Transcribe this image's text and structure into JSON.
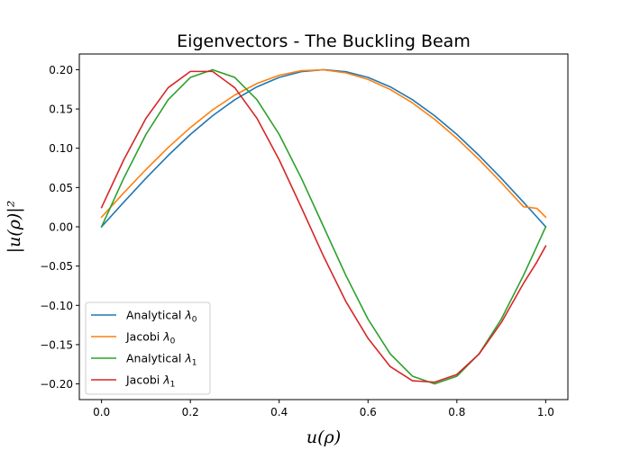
{
  "chart_data": {
    "type": "line",
    "title": "Eigenvectors - The Buckling Beam",
    "xlabel": "u(ρ)",
    "ylabel": "|u(ρ)|²",
    "xlim": [
      -0.05,
      1.05
    ],
    "ylim": [
      -0.22,
      0.22
    ],
    "xticks": [
      0.0,
      0.2,
      0.4,
      0.6,
      0.8,
      1.0
    ],
    "xtick_labels": [
      "0.0",
      "0.2",
      "0.4",
      "0.6",
      "0.8",
      "1.0"
    ],
    "yticks": [
      -0.2,
      -0.15,
      -0.1,
      -0.05,
      0.0,
      0.05,
      0.1,
      0.15,
      0.2
    ],
    "ytick_labels": [
      "−0.20",
      "−0.15",
      "−0.10",
      "−0.05",
      "0.00",
      "0.05",
      "0.10",
      "0.15",
      "0.20"
    ],
    "grid": false,
    "legend_position": "lower-left",
    "series": [
      {
        "name": "Analytical λ0",
        "label_main": "Analytical ",
        "label_sym": "λ",
        "label_sub": "0",
        "color": "#1f77b4",
        "x": [
          0.0,
          0.05,
          0.1,
          0.15,
          0.2,
          0.25,
          0.3,
          0.35,
          0.4,
          0.45,
          0.5,
          0.55,
          0.6,
          0.65,
          0.7,
          0.75,
          0.8,
          0.85,
          0.9,
          0.95,
          0.98,
          1.0
        ],
        "y": [
          0.0,
          0.0313,
          0.0618,
          0.0908,
          0.1176,
          0.1414,
          0.1618,
          0.1782,
          0.1902,
          0.1975,
          0.2,
          0.1975,
          0.1902,
          0.1782,
          0.1618,
          0.1414,
          0.1176,
          0.0908,
          0.0618,
          0.0313,
          0.0126,
          0.0
        ]
      },
      {
        "name": "Jacobi λ0",
        "label_main": "Jacobi ",
        "label_sym": "λ",
        "label_sub": "0",
        "color": "#ff7f0e",
        "x": [
          0.0,
          0.05,
          0.1,
          0.15,
          0.2,
          0.25,
          0.3,
          0.35,
          0.4,
          0.45,
          0.5,
          0.55,
          0.6,
          0.65,
          0.7,
          0.75,
          0.8,
          0.85,
          0.9,
          0.95,
          0.98,
          1.0
        ],
        "y": [
          0.0123,
          0.0432,
          0.0729,
          0.1009,
          0.1264,
          0.1488,
          0.1677,
          0.1825,
          0.1929,
          0.1987,
          0.1998,
          0.1961,
          0.1876,
          0.1748,
          0.1577,
          0.1368,
          0.1126,
          0.0856,
          0.0563,
          0.0256,
          0.0235,
          0.0123
        ]
      },
      {
        "name": "Analytical λ1",
        "label_main": "Analytical ",
        "label_sym": "λ",
        "label_sub": "1",
        "color": "#2ca02c",
        "x": [
          0.0,
          0.05,
          0.1,
          0.15,
          0.2,
          0.25,
          0.3,
          0.35,
          0.4,
          0.45,
          0.5,
          0.55,
          0.6,
          0.65,
          0.7,
          0.75,
          0.8,
          0.85,
          0.9,
          0.95,
          0.98,
          1.0
        ],
        "y": [
          0.0,
          0.0618,
          0.1176,
          0.1618,
          0.1902,
          0.2,
          0.1902,
          0.1618,
          0.1176,
          0.0618,
          0.0,
          -0.0618,
          -0.1176,
          -0.1618,
          -0.1902,
          -0.2,
          -0.1902,
          -0.1618,
          -0.1176,
          -0.0618,
          -0.025,
          0.0
        ]
      },
      {
        "name": "Jacobi λ1",
        "label_main": "Jacobi ",
        "label_sym": "λ",
        "label_sub": "1",
        "color": "#d62728",
        "x": [
          0.0,
          0.05,
          0.1,
          0.15,
          0.2,
          0.25,
          0.3,
          0.35,
          0.4,
          0.45,
          0.5,
          0.55,
          0.6,
          0.65,
          0.7,
          0.75,
          0.8,
          0.85,
          0.9,
          0.95,
          0.98,
          1.0
        ],
        "y": [
          0.0245,
          0.0852,
          0.1381,
          0.1771,
          0.1978,
          0.1978,
          0.1771,
          0.1381,
          0.0852,
          0.0245,
          -0.0377,
          -0.095,
          -0.142,
          -0.178,
          -0.196,
          -0.1978,
          -0.188,
          -0.162,
          -0.122,
          -0.072,
          -0.045,
          -0.0245
        ]
      }
    ]
  }
}
